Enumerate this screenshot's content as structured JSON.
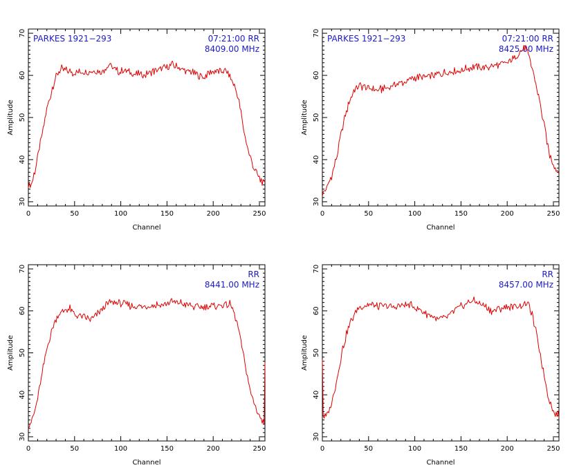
{
  "colors": {
    "trace": "#dd0000",
    "annotation": "#1a1acc",
    "axes": "#000000",
    "background": "#ffffff"
  },
  "chart_data": [
    {
      "type": "line",
      "source_label": "PARKES 1921−293",
      "time_pol_label": "07:21:00  RR",
      "freq_label": "8409.00  MHz",
      "xlabel": "Channel",
      "ylabel": "Amplitude",
      "xlim": [
        0,
        256
      ],
      "ylim": [
        29,
        71
      ],
      "x_ticks": [
        0,
        50,
        100,
        150,
        200,
        250
      ],
      "y_ticks": [
        30,
        40,
        50,
        60,
        70
      ],
      "series": [
        {
          "x": [
            0,
            3,
            8,
            14,
            20,
            26,
            30,
            36,
            42,
            50,
            60,
            70,
            80,
            88,
            95,
            105,
            115,
            125,
            135,
            145,
            155,
            162,
            170,
            180,
            190,
            198,
            206,
            213,
            218,
            222,
            228,
            233,
            238,
            244,
            250,
            256
          ],
          "y": [
            34,
            34,
            38,
            45,
            52,
            57,
            60,
            61.5,
            61,
            60.5,
            61,
            61,
            61,
            62.5,
            61,
            61,
            60.5,
            60,
            61,
            61.5,
            62.5,
            62,
            61,
            60.5,
            59.5,
            61,
            61,
            61,
            60,
            58,
            54,
            47,
            42,
            38,
            35.5,
            34
          ]
        }
      ]
    },
    {
      "type": "line",
      "source_label": "PARKES 1921−293",
      "time_pol_label": "07:21:00  RR",
      "freq_label": "8425.00  MHz",
      "xlabel": "Channel",
      "ylabel": "Amplitude",
      "xlim": [
        0,
        256
      ],
      "ylim": [
        29,
        71
      ],
      "x_ticks": [
        0,
        50,
        100,
        150,
        200,
        250
      ],
      "y_ticks": [
        30,
        40,
        50,
        60,
        70
      ],
      "series": [
        {
          "x": [
            0,
            4,
            10,
            16,
            22,
            28,
            34,
            40,
            50,
            60,
            70,
            80,
            90,
            100,
            110,
            120,
            130,
            140,
            150,
            160,
            170,
            180,
            190,
            200,
            210,
            216,
            220,
            224,
            228,
            234,
            240,
            246,
            252,
            256
          ],
          "y": [
            32,
            33,
            36,
            41,
            48,
            53,
            56.5,
            57.5,
            57,
            56.5,
            57,
            58,
            58.5,
            59.5,
            59.5,
            60,
            60.5,
            61,
            61,
            62,
            62,
            62,
            62.5,
            63,
            64.5,
            66,
            66.5,
            64,
            61,
            55,
            48,
            41,
            38,
            37.5
          ]
        }
      ]
    },
    {
      "type": "line",
      "source_label": "",
      "time_pol_label": "RR",
      "freq_label": "8441.00  MHz",
      "xlabel": "Channel",
      "ylabel": "Amplitude",
      "xlim": [
        0,
        256
      ],
      "ylim": [
        29,
        71
      ],
      "x_ticks": [
        0,
        50,
        100,
        150,
        200,
        250
      ],
      "y_ticks": [
        30,
        40,
        50,
        60,
        70
      ],
      "series": [
        {
          "x": [
            0,
            4,
            8,
            14,
            20,
            26,
            32,
            38,
            45,
            50,
            58,
            66,
            72,
            78,
            84,
            90,
            96,
            105,
            115,
            125,
            135,
            145,
            155,
            162,
            170,
            180,
            190,
            200,
            210,
            218,
            222,
            228,
            234,
            240,
            246,
            252,
            255,
            256
          ],
          "y": [
            33,
            34,
            37,
            44,
            51,
            56,
            59,
            60,
            60.5,
            59,
            58.5,
            58,
            58.5,
            60,
            61.5,
            62,
            62,
            61.5,
            61,
            61,
            61.5,
            61.5,
            62,
            62,
            61.5,
            61,
            61,
            61,
            61.5,
            61.5,
            60,
            55,
            48,
            41,
            37,
            34,
            33.5,
            48
          ]
        }
      ]
    },
    {
      "type": "line",
      "source_label": "",
      "time_pol_label": "RR",
      "freq_label": "8457.00  MHz",
      "xlabel": "Channel",
      "ylabel": "Amplitude",
      "xlim": [
        0,
        256
      ],
      "ylim": [
        29,
        71
      ],
      "x_ticks": [
        0,
        50,
        100,
        150,
        200,
        250
      ],
      "y_ticks": [
        30,
        40,
        50,
        60,
        70
      ],
      "series": [
        {
          "x": [
            0,
            1,
            2,
            5,
            10,
            16,
            22,
            28,
            34,
            40,
            50,
            60,
            70,
            80,
            90,
            100,
            108,
            116,
            124,
            130,
            138,
            146,
            154,
            162,
            168,
            176,
            184,
            192,
            200,
            208,
            216,
            222,
            226,
            232,
            238,
            244,
            250,
            256
          ],
          "y": [
            49,
            35,
            35,
            35,
            38,
            44,
            51,
            56,
            59,
            61,
            61.5,
            61,
            61,
            61,
            61.5,
            61,
            60,
            59,
            58,
            58,
            59,
            60.5,
            61.5,
            62.5,
            62,
            61,
            60,
            60.5,
            61,
            61,
            61.5,
            62,
            60,
            54,
            47,
            40,
            36,
            35
          ]
        }
      ]
    }
  ]
}
